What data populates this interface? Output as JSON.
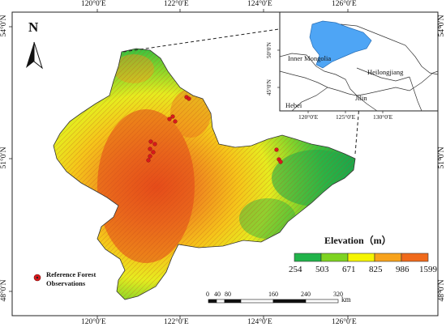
{
  "graticule": {
    "top": [
      "120°0′E",
      "122°0′E",
      "124°0′E",
      "126°0′E"
    ],
    "bottom": [
      "120°0′E",
      "122°0′E",
      "124°0′E",
      "126°0′E"
    ],
    "left": [
      "54°0′N",
      "51°0′N",
      "48°0′N"
    ],
    "right": [
      "54°0′N",
      "51°0′N",
      "48°0′N"
    ]
  },
  "north_arrow": {
    "label": "N"
  },
  "inset": {
    "regions": [
      "Inner Mongolia",
      "Heilongjiang",
      "Jilin",
      "Hebei"
    ],
    "lon_ticks": [
      "120°0′E",
      "125°0′E",
      "130°0′E"
    ],
    "lat_ticks": [
      "50°0′N",
      "45°0′N"
    ],
    "highlight_color": "#4ea5f5"
  },
  "legend": {
    "title": "Elevation（m）",
    "breaks": [
      "254",
      "503",
      "671",
      "825",
      "986",
      "1599"
    ],
    "colors": [
      "#21b34a",
      "#7ed321",
      "#f5f500",
      "#f7a21b",
      "#f06a1b"
    ],
    "point_label_1": "Reference Forest",
    "point_label_2": "Observations",
    "point_color": "#d7191c"
  },
  "scale_bar": {
    "ticks": [
      "0",
      "40",
      "80",
      "160",
      "240",
      "320"
    ],
    "unit": "km"
  }
}
